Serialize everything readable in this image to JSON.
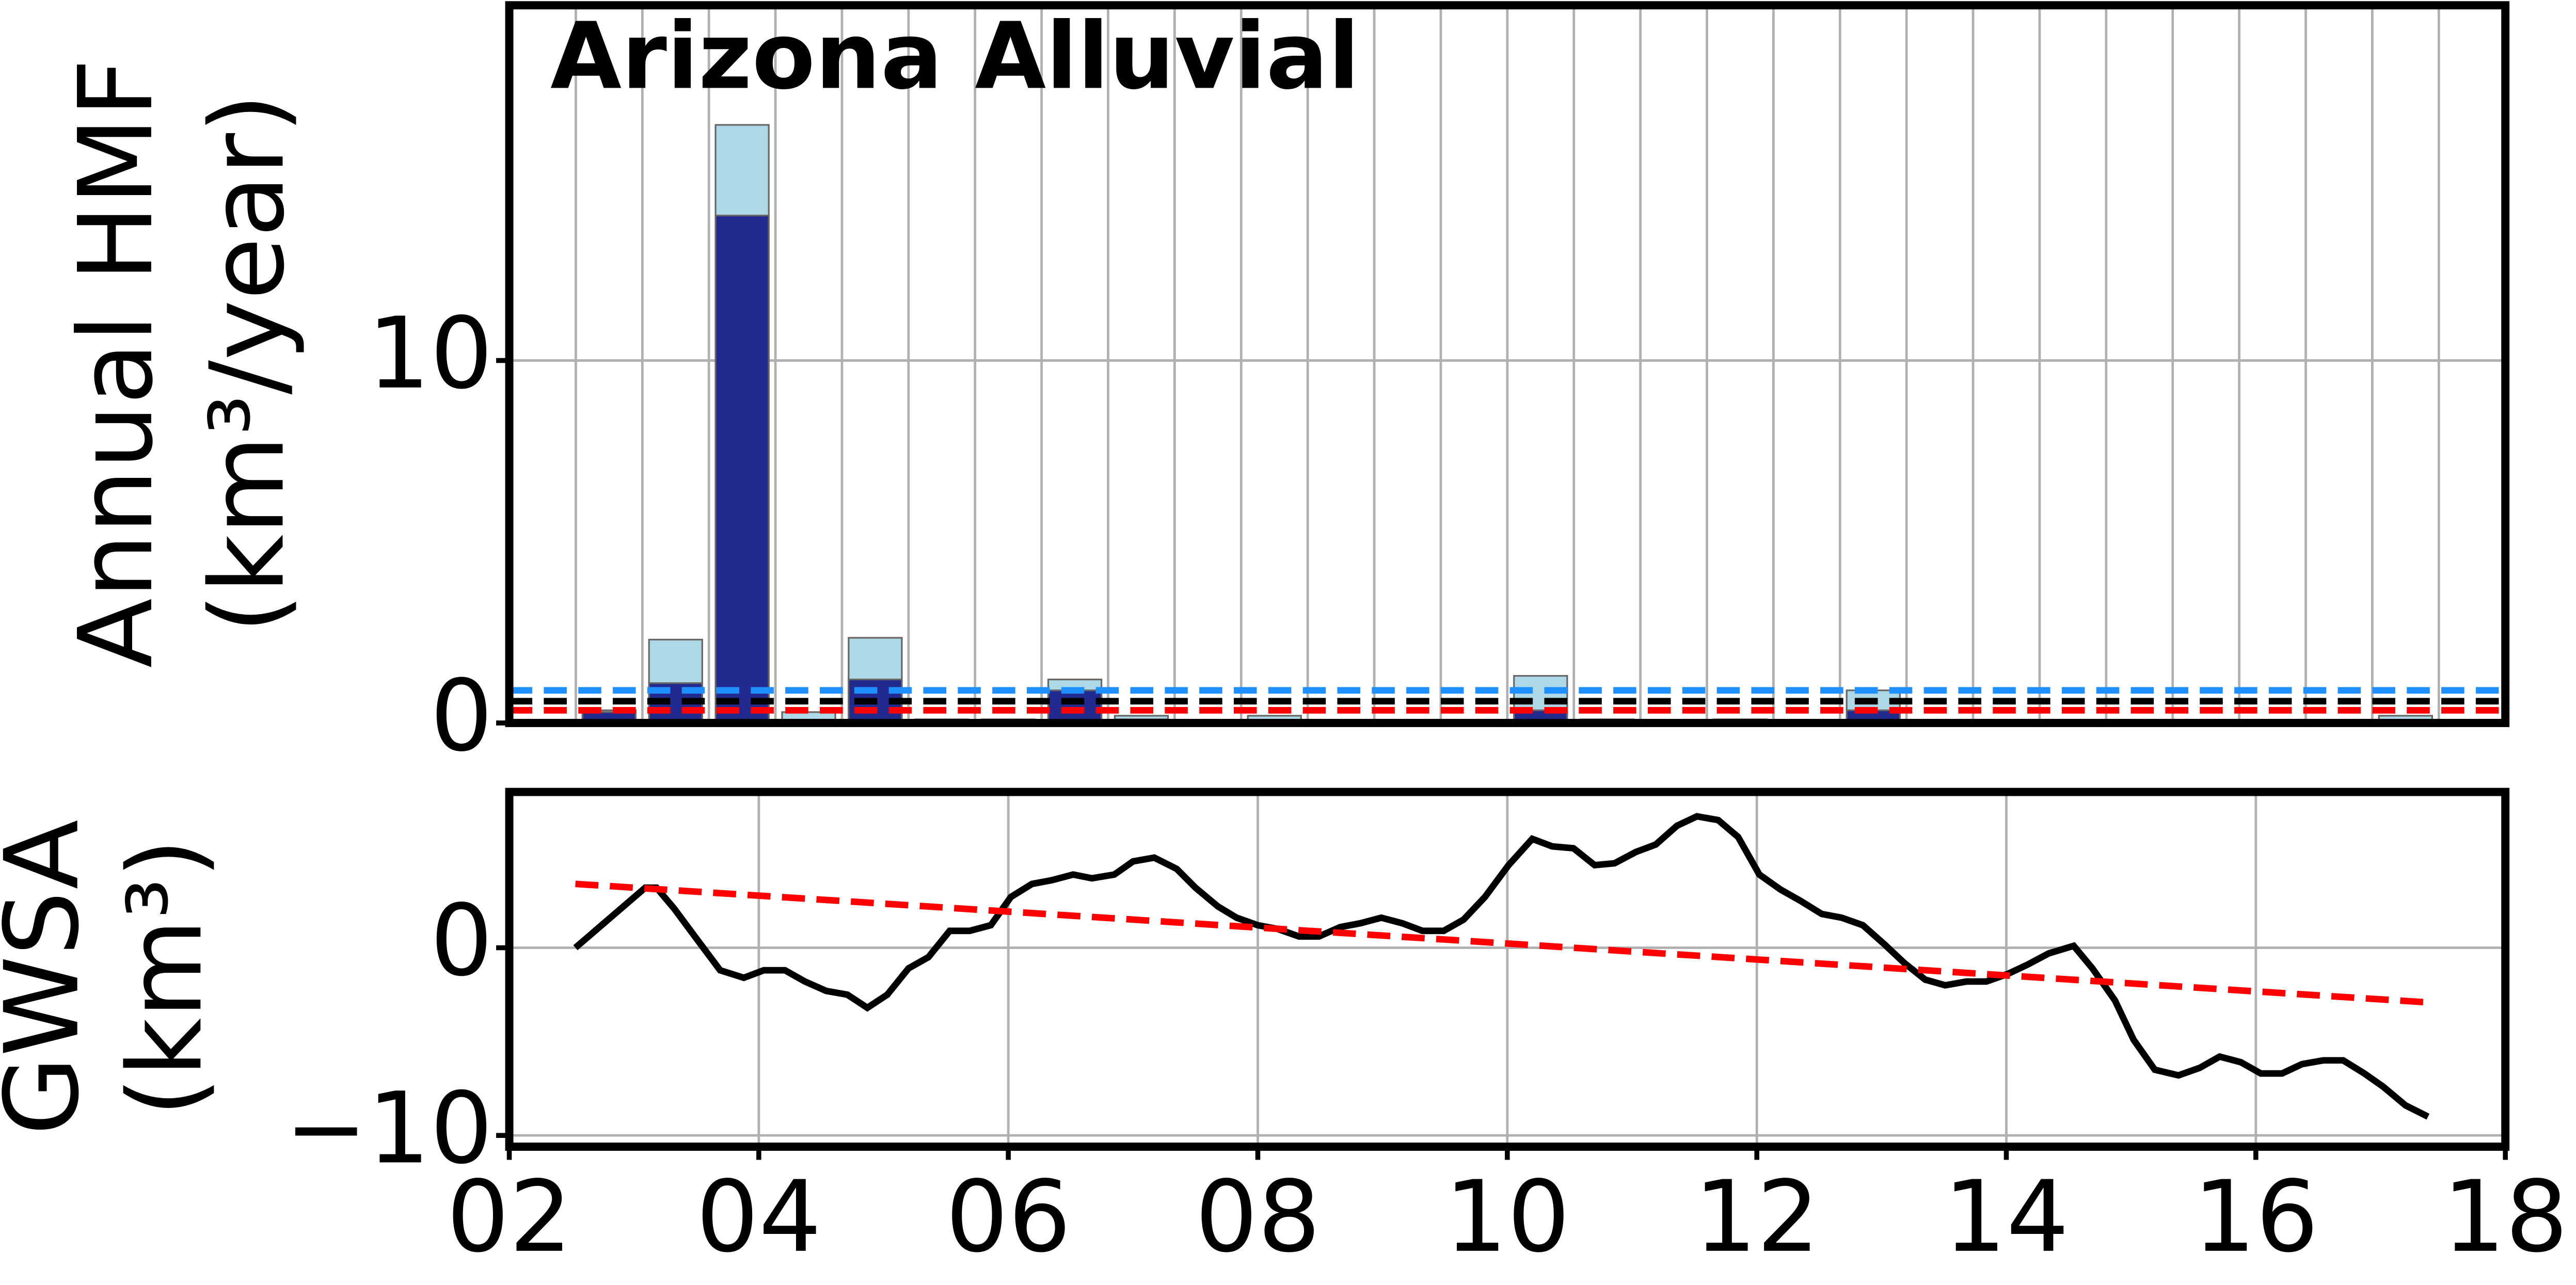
{
  "chart_data": [
    {
      "type": "bar",
      "title": "Arizona Alluvial",
      "ylabel": [
        "Annual HMF",
        "(km³/year)"
      ],
      "categories": [
        null,
        null,
        null,
        null,
        null,
        null,
        null,
        null,
        null,
        null,
        null,
        null,
        null,
        null,
        null,
        null,
        null,
        null,
        null,
        null,
        null,
        null,
        null,
        null,
        null,
        null,
        null,
        null,
        null,
        null
      ],
      "series": [
        {
          "color": "#add8e6",
          "values": [
            0,
            0.35,
            2.3,
            16.5,
            0.3,
            2.35,
            0.1,
            0.1,
            1.2,
            0.2,
            0,
            0.2,
            0,
            0,
            0,
            1.3,
            0.1,
            0,
            0.1,
            0,
            0.9,
            0,
            0,
            0,
            0,
            0,
            0,
            0,
            0.2,
            0
          ]
        },
        {
          "color": "#232a8f",
          "values": [
            0,
            0.3,
            1.1,
            14.0,
            0,
            1.2,
            0,
            0,
            0.9,
            0.1,
            0,
            0,
            0,
            0,
            0,
            0.35,
            0,
            0,
            0,
            0,
            0.35,
            0,
            0,
            0,
            0,
            0,
            0,
            0,
            0,
            0
          ]
        }
      ],
      "hlines": [
        {
          "value": 0.9,
          "color": "#1e90ff"
        },
        {
          "value": 0.6,
          "color": "#000000"
        },
        {
          "value": 0.35,
          "color": "#ff0000"
        }
      ],
      "ylim": [
        0,
        19.8
      ],
      "yticks": [
        0,
        10
      ],
      "grid": true
    },
    {
      "type": "line",
      "ylabel": [
        "GWSA",
        "(km³)"
      ],
      "series": [
        {
          "color": "#000000",
          "dash": false,
          "x": [
            2.53,
            3.09,
            3.18,
            3.32,
            3.51,
            3.69,
            3.88,
            4.04,
            4.21,
            4.37,
            4.54,
            4.71,
            4.87,
            5.03,
            5.2,
            5.36,
            5.53,
            5.69,
            5.86,
            6.02,
            6.19,
            6.35,
            6.52,
            6.67,
            6.85,
            7.0,
            7.17,
            7.35,
            7.5,
            7.68,
            7.83,
            8.0,
            8.16,
            8.33,
            8.49,
            8.66,
            8.82,
            8.99,
            9.16,
            9.32,
            9.49,
            9.65,
            9.82,
            10.01,
            10.2,
            10.36,
            10.53,
            10.7,
            10.86,
            11.03,
            11.19,
            11.36,
            11.52,
            11.69,
            11.85,
            12.02,
            12.19,
            12.35,
            12.52,
            12.68,
            12.85,
            13.02,
            13.18,
            13.35,
            13.51,
            13.68,
            13.84,
            14.01,
            14.17,
            14.34,
            14.54,
            14.69,
            14.87,
            15.02,
            15.19,
            15.38,
            15.55,
            15.71,
            15.88,
            16.04,
            16.21,
            16.37,
            16.54,
            16.7,
            16.87,
            17.02,
            17.2,
            17.38
          ],
          "values": [
            0,
            3.2,
            3.2,
            2.1,
            0.4,
            -1.2,
            -1.6,
            -1.2,
            -1.2,
            -1.8,
            -2.3,
            -2.5,
            -3.2,
            -2.5,
            -1.1,
            -0.5,
            0.9,
            0.9,
            1.2,
            2.7,
            3.4,
            3.6,
            3.9,
            3.7,
            3.9,
            4.6,
            4.8,
            4.2,
            3.2,
            2.2,
            1.6,
            1.2,
            1.0,
            0.6,
            0.6,
            1.1,
            1.3,
            1.6,
            1.3,
            0.9,
            0.9,
            1.5,
            2.7,
            4.4,
            5.8,
            5.4,
            5.3,
            4.4,
            4.5,
            5.1,
            5.5,
            6.5,
            7.0,
            6.8,
            5.9,
            3.9,
            3.1,
            2.5,
            1.8,
            1.6,
            1.2,
            0.2,
            -0.8,
            -1.7,
            -2.0,
            -1.8,
            -1.8,
            -1.4,
            -0.9,
            -0.3,
            0.1,
            -1.1,
            -2.8,
            -4.9,
            -6.5,
            -6.8,
            -6.4,
            -5.8,
            -6.1,
            -6.7,
            -6.7,
            -6.2,
            -6.0,
            -6.0,
            -6.7,
            -7.4,
            -8.4,
            -9.0
          ]
        },
        {
          "color": "#ff0000",
          "dash": true,
          "x": [
            2.53,
            17.35
          ],
          "values": [
            3.4,
            -2.9
          ]
        }
      ],
      "xlim": [
        2,
        18
      ],
      "xticks": [
        {
          "value": 2,
          "label": "02"
        },
        {
          "value": 4,
          "label": "04"
        },
        {
          "value": 6,
          "label": "06"
        },
        {
          "value": 8,
          "label": "08"
        },
        10,
        12,
        14,
        16,
        18
      ],
      "ylim": [
        -10.6,
        8.3
      ],
      "yticks": [
        {
          "value": -10,
          "label": "−10"
        },
        0
      ],
      "grid": true
    }
  ]
}
